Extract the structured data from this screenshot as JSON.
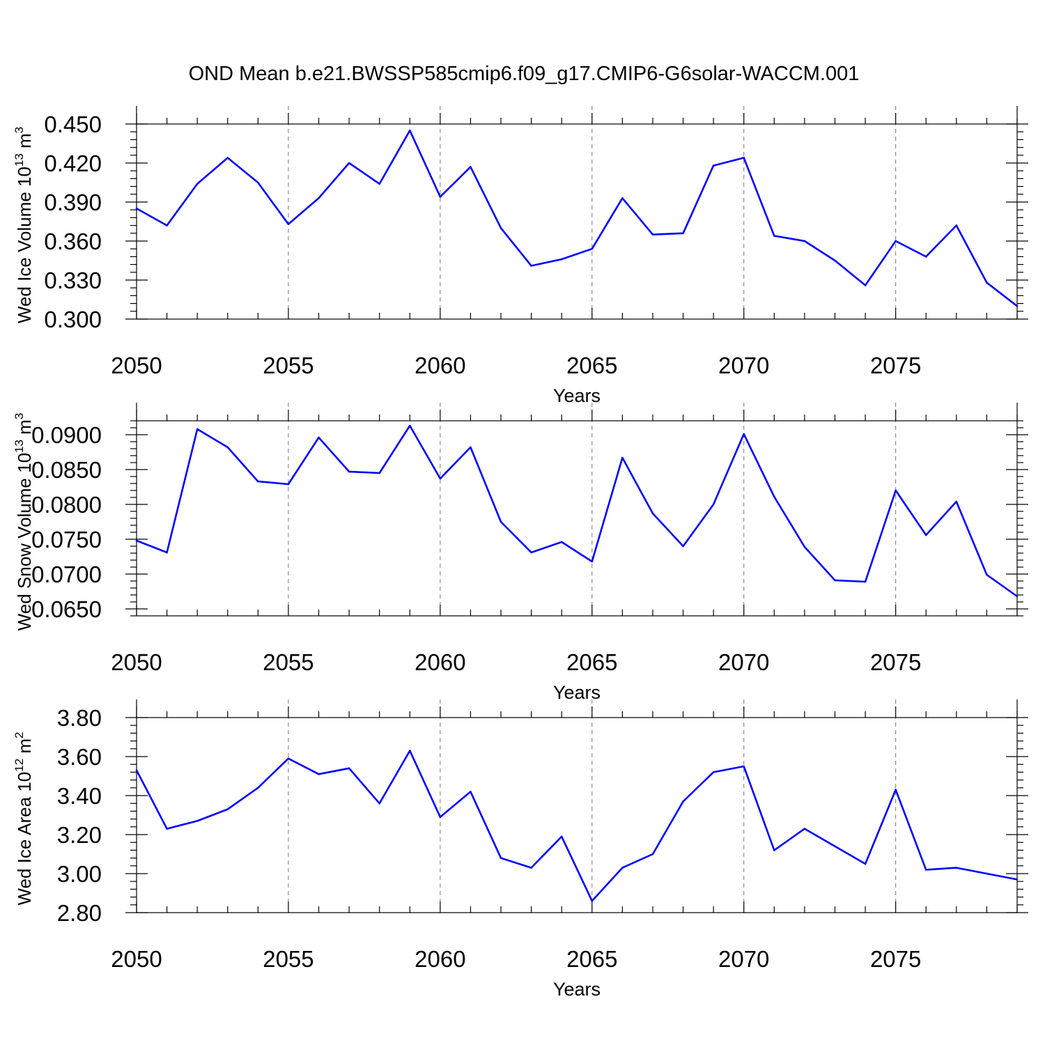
{
  "title": "OND Mean b.e21.BWSSP585cmip6.f09_g17.CMIP6-G6solar-WACCM.001",
  "line_color": "#0000ff",
  "chart_data": [
    {
      "type": "line",
      "ylabel": {
        "main": "Wed Ice Volume 10",
        "exp": "13",
        "unit": " m",
        "unit_exp": "3"
      },
      "xlabel": "Years",
      "xlim": [
        2050,
        2079
      ],
      "ylim": [
        0.3,
        0.45
      ],
      "x_ticks": [
        2050,
        2055,
        2060,
        2065,
        2070,
        2075
      ],
      "x_tick_labels": [
        "2050",
        "2055",
        "2060",
        "2065",
        "2070",
        "2075"
      ],
      "y_ticks": [
        0.3,
        0.33,
        0.36,
        0.39,
        0.42,
        0.45
      ],
      "y_tick_labels": [
        "0.300",
        "0.330",
        "0.360",
        "0.390",
        "0.420",
        "0.450"
      ],
      "y_minor_step": 0.006,
      "frame_ymin": 0.3,
      "frame_ymax": 0.45,
      "grid_x": [
        2055,
        2060,
        2065,
        2070,
        2075
      ],
      "x": [
        2050,
        2051,
        2052,
        2053,
        2054,
        2055,
        2056,
        2057,
        2058,
        2059,
        2060,
        2061,
        2062,
        2063,
        2064,
        2065,
        2066,
        2067,
        2068,
        2069,
        2070,
        2071,
        2072,
        2073,
        2074,
        2075,
        2076,
        2077,
        2078,
        2079
      ],
      "values": [
        0.385,
        0.372,
        0.404,
        0.424,
        0.405,
        0.373,
        0.393,
        0.42,
        0.404,
        0.445,
        0.394,
        0.417,
        0.37,
        0.341,
        0.346,
        0.354,
        0.393,
        0.365,
        0.366,
        0.418,
        0.424,
        0.364,
        0.36,
        0.345,
        0.326,
        0.36,
        0.348,
        0.372,
        0.328,
        0.31
      ]
    },
    {
      "type": "line",
      "ylabel": {
        "main": "Wed Snow Volume 10",
        "exp": "13",
        "unit": " m",
        "unit_exp": "3"
      },
      "xlabel": "Years",
      "xlim": [
        2050,
        2079
      ],
      "ylim": [
        0.064,
        0.092
      ],
      "x_ticks": [
        2050,
        2055,
        2060,
        2065,
        2070,
        2075
      ],
      "x_tick_labels": [
        "2050",
        "2055",
        "2060",
        "2065",
        "2070",
        "2075"
      ],
      "y_ticks": [
        0.065,
        0.07,
        0.075,
        0.08,
        0.085,
        0.09
      ],
      "y_tick_labels": [
        "0.0650",
        "0.0700",
        "0.0750",
        "0.0800",
        "0.0850",
        "0.0900"
      ],
      "y_minor_step": 0.001,
      "frame_ymin": 0.064,
      "frame_ymax": 0.092,
      "grid_x": [
        2055,
        2060,
        2065,
        2070,
        2075
      ],
      "x": [
        2050,
        2051,
        2052,
        2053,
        2054,
        2055,
        2056,
        2057,
        2058,
        2059,
        2060,
        2061,
        2062,
        2063,
        2064,
        2065,
        2066,
        2067,
        2068,
        2069,
        2070,
        2071,
        2072,
        2073,
        2074,
        2075,
        2076,
        2077,
        2078,
        2079
      ],
      "values": [
        0.0748,
        0.0731,
        0.0908,
        0.0882,
        0.0833,
        0.0829,
        0.0896,
        0.0847,
        0.0845,
        0.0913,
        0.0837,
        0.0882,
        0.0775,
        0.0731,
        0.0746,
        0.0718,
        0.0867,
        0.0787,
        0.074,
        0.08,
        0.0901,
        0.0811,
        0.0739,
        0.0691,
        0.0689,
        0.082,
        0.0756,
        0.0804,
        0.0699,
        0.0668
      ]
    },
    {
      "type": "line",
      "ylabel": {
        "main": "Wed Ice Area 10",
        "exp": "12",
        "unit": " m",
        "unit_exp": "2"
      },
      "xlabel": "Years",
      "xlim": [
        2050,
        2079
      ],
      "ylim": [
        2.8,
        3.8
      ],
      "x_ticks": [
        2050,
        2055,
        2060,
        2065,
        2070,
        2075
      ],
      "x_tick_labels": [
        "2050",
        "2055",
        "2060",
        "2065",
        "2070",
        "2075"
      ],
      "y_ticks": [
        2.8,
        3.0,
        3.2,
        3.4,
        3.6,
        3.8
      ],
      "y_tick_labels": [
        "2.80",
        "3.00",
        "3.20",
        "3.40",
        "3.60",
        "3.80"
      ],
      "y_minor_step": 0.04,
      "frame_ymin": 2.8,
      "frame_ymax": 3.8,
      "grid_x": [
        2055,
        2060,
        2065,
        2070,
        2075
      ],
      "x": [
        2050,
        2051,
        2052,
        2053,
        2054,
        2055,
        2056,
        2057,
        2058,
        2059,
        2060,
        2061,
        2062,
        2063,
        2064,
        2065,
        2066,
        2067,
        2068,
        2069,
        2070,
        2071,
        2072,
        2073,
        2074,
        2075,
        2076,
        2077,
        2078,
        2079
      ],
      "values": [
        3.53,
        3.23,
        3.27,
        3.33,
        3.44,
        3.59,
        3.51,
        3.54,
        3.36,
        3.63,
        3.29,
        3.42,
        3.08,
        3.03,
        3.19,
        2.86,
        3.03,
        3.1,
        3.37,
        3.52,
        3.55,
        3.12,
        3.23,
        3.14,
        3.05,
        3.43,
        3.02,
        3.03,
        3.0,
        2.97
      ]
    }
  ]
}
